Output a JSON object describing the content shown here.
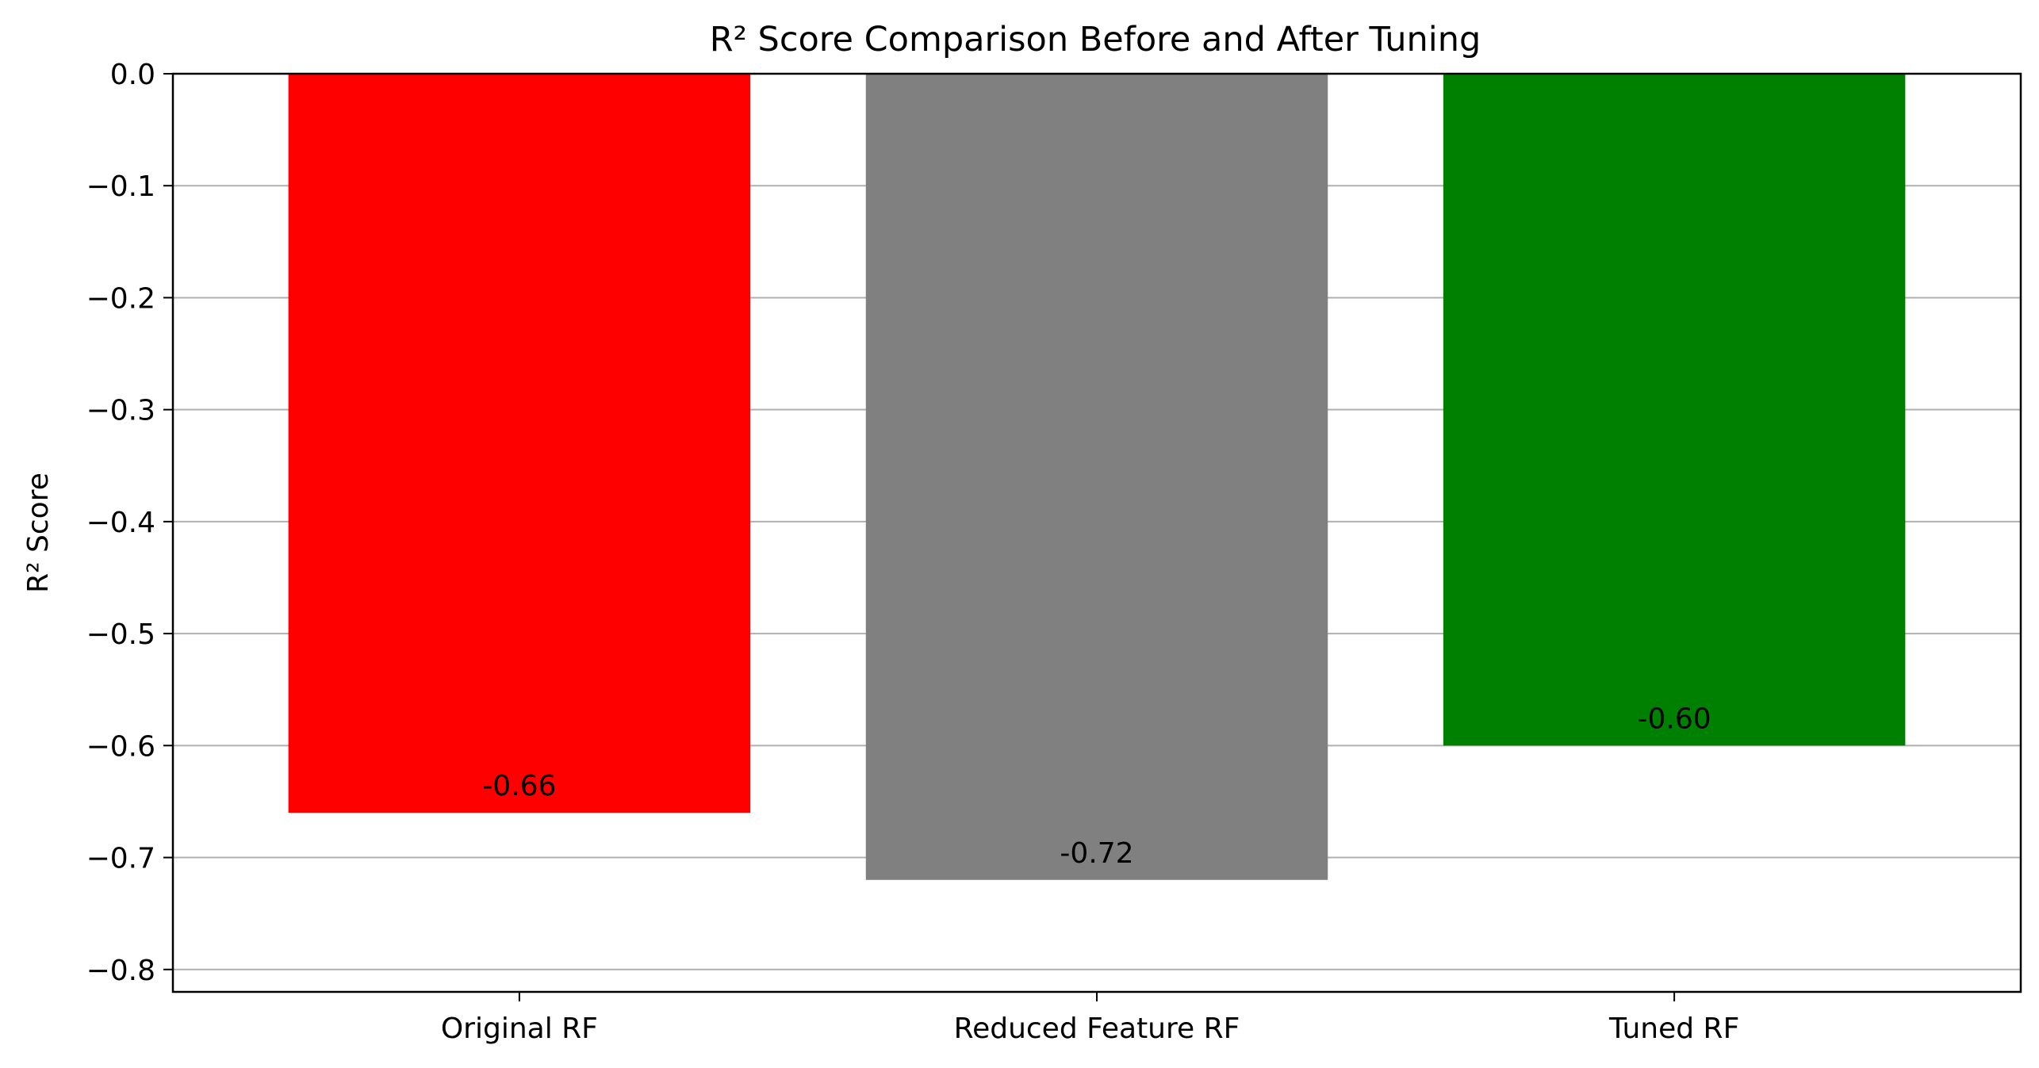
{
  "chart_data": {
    "type": "bar",
    "title": "R² Score Comparison Before and After Tuning",
    "xlabel": "",
    "ylabel": "R² Score",
    "categories": [
      "Original RF",
      "Reduced Feature RF",
      "Tuned RF"
    ],
    "values": [
      -0.66,
      -0.72,
      -0.6
    ],
    "value_labels": [
      "-0.66",
      "-0.72",
      "-0.60"
    ],
    "colors": [
      "#ff0000",
      "#808080",
      "#008000"
    ],
    "ylim": [
      -0.82,
      0.0
    ],
    "yticks": [
      0.0,
      -0.1,
      -0.2,
      -0.3,
      -0.4,
      -0.5,
      -0.6,
      -0.7,
      -0.8
    ],
    "ytick_labels": [
      "0.0",
      "−0.1",
      "−0.2",
      "−0.3",
      "−0.4",
      "−0.5",
      "−0.6",
      "−0.7",
      "−0.8"
    ],
    "grid": "horizontal",
    "legend": "none"
  }
}
